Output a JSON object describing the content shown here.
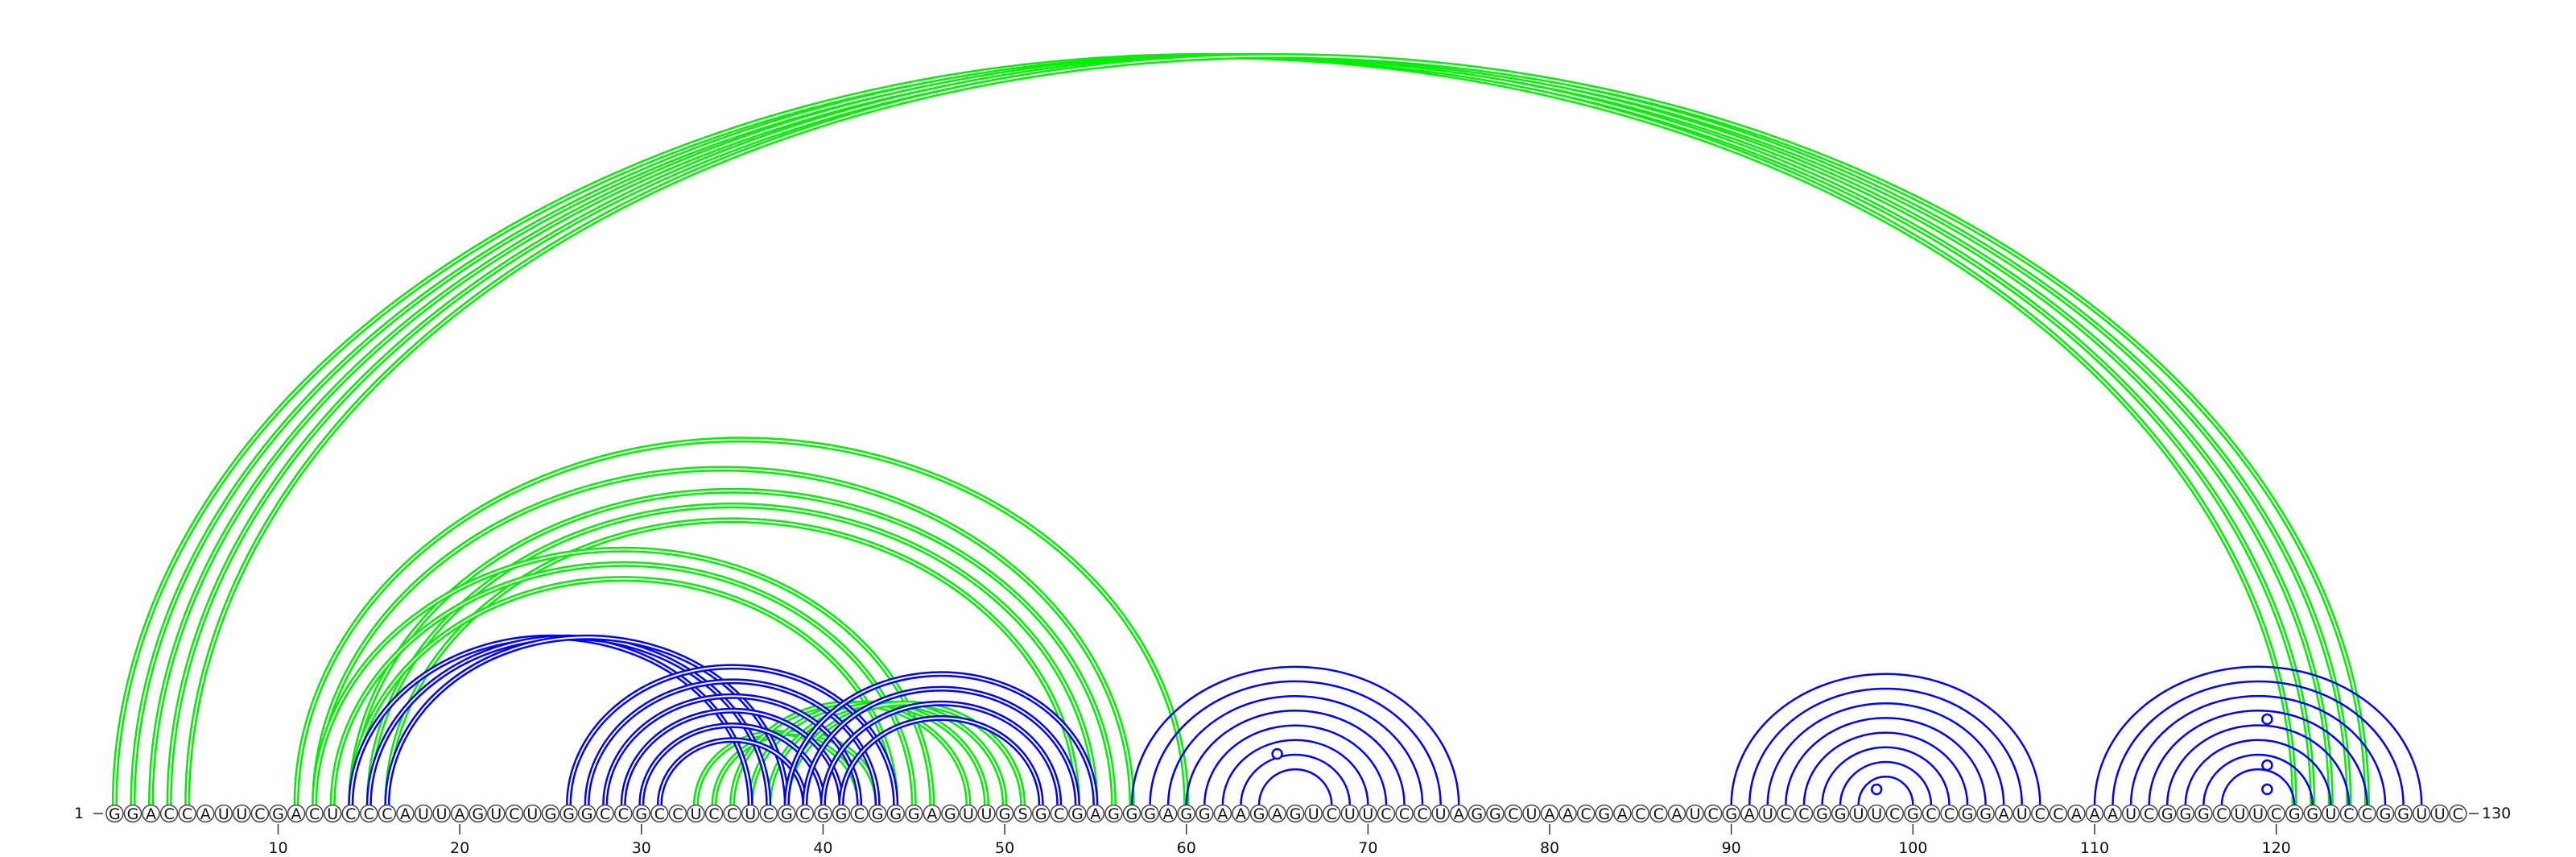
{
  "sequence": "GGACCAUUCGACUCCCAUUAGUCUGGGCCGCCUCCUCGCGGCGGGAGUUGSGCGAGGGAGGAAGAGUCUUCCCUAGGCUAACGACCAUCGAUCCGGUUCGCCGGAUCCAAAUCGGGCUUCGGUCCGGUUC",
  "start_label": "1",
  "end_label": "130",
  "ticks": [
    10,
    20,
    30,
    40,
    50,
    60,
    70,
    80,
    90,
    100,
    110,
    120
  ],
  "colors": {
    "conserved_pair": "#00ee00",
    "predicted_pair": "#0000ff"
  },
  "arc_groups": [
    {
      "color": "conserved_pair",
      "style": "double",
      "pairs": [
        [
          1,
          121
        ],
        [
          2,
          122
        ],
        [
          3,
          123
        ],
        [
          4,
          124
        ],
        [
          5,
          125
        ]
      ]
    },
    {
      "color": "conserved_pair",
      "style": "double",
      "pairs": [
        [
          11,
          60
        ],
        [
          12,
          57
        ],
        [
          14,
          56
        ],
        [
          15,
          55
        ],
        [
          16,
          54
        ]
      ]
    },
    {
      "color": "conserved_pair",
      "style": "double",
      "pairs": [
        [
          12,
          46
        ],
        [
          13,
          45
        ],
        [
          14,
          44
        ]
      ]
    },
    {
      "color": "conserved_pair",
      "style": "double",
      "pairs": [
        [
          33,
          42
        ],
        [
          34,
          43
        ],
        [
          35,
          48
        ],
        [
          36,
          49
        ],
        [
          37,
          50
        ],
        [
          38,
          51
        ]
      ]
    },
    {
      "color": "predicted_pair",
      "style": "double",
      "pairs": [
        [
          14,
          36
        ],
        [
          15,
          37
        ],
        [
          16,
          38
        ]
      ]
    },
    {
      "color": "predicted_pair",
      "style": "double",
      "pairs": [
        [
          26,
          44
        ],
        [
          27,
          43
        ],
        [
          28,
          42
        ],
        [
          29,
          41
        ],
        [
          30,
          40
        ],
        [
          31,
          39
        ]
      ]
    },
    {
      "color": "predicted_pair",
      "style": "double",
      "pairs": [
        [
          38,
          55
        ],
        [
          39,
          54
        ],
        [
          40,
          53
        ],
        [
          41,
          52
        ]
      ]
    },
    {
      "color": "predicted_pair",
      "style": "single",
      "pairs": [
        [
          57,
          75
        ],
        [
          58,
          74
        ],
        [
          59,
          73
        ],
        [
          60,
          72
        ],
        [
          61,
          71
        ],
        [
          62,
          70
        ],
        [
          63,
          69
        ],
        [
          64,
          68
        ]
      ]
    },
    {
      "color": "predicted_pair",
      "style": "single",
      "pairs": [
        [
          90,
          107
        ],
        [
          91,
          106
        ],
        [
          92,
          105
        ],
        [
          93,
          104
        ],
        [
          94,
          103
        ],
        [
          95,
          102
        ],
        [
          96,
          101
        ],
        [
          97,
          100
        ]
      ]
    },
    {
      "color": "predicted_pair",
      "style": "single",
      "pairs": [
        [
          110,
          128
        ],
        [
          111,
          127
        ],
        [
          112,
          126
        ],
        [
          113,
          125
        ],
        [
          114,
          124
        ],
        [
          115,
          123
        ],
        [
          116,
          122
        ],
        [
          117,
          121
        ]
      ]
    }
  ],
  "markers": [
    65,
    98,
    119.5,
    119.5,
    119.5
  ]
}
